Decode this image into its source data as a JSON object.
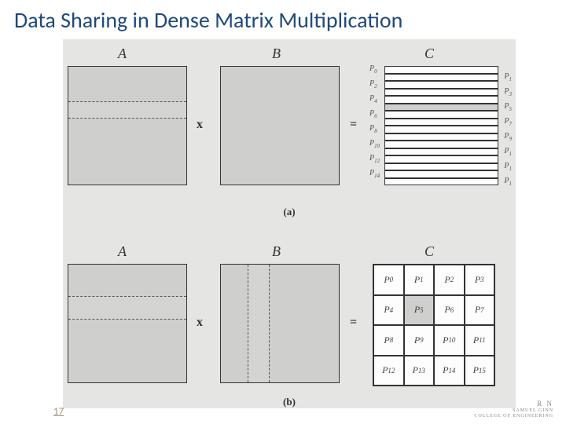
{
  "title": "Data Sharing in Dense Matrix Multiplication",
  "page_number": "17",
  "footer": {
    "line1": "R N",
    "line2": "SAMUEL GINN\nCOLLEGE OF ENGINEERING"
  },
  "labels": {
    "A": "A",
    "B": "B",
    "C": "C",
    "times": "x",
    "equals": "=",
    "sub_a": "(a)",
    "sub_b": "(b)"
  },
  "figure": {
    "background_color": "#e5e5e3",
    "matrix_fill": "#cfcfcd",
    "border_color": "#333333",
    "row_a": {
      "c_strip_count": 16,
      "shaded_index": 5,
      "left_labels": [
        "P0",
        "P2",
        "P4",
        "P6",
        "P8",
        "P10",
        "P12",
        "P14"
      ],
      "right_labels": [
        "P1",
        "P3",
        "P5",
        "P7",
        "P9",
        "P1",
        "P1",
        "P1"
      ]
    },
    "row_b": {
      "grid": 4,
      "shaded_cell": [
        1,
        1
      ],
      "cells": [
        [
          "P0",
          "P1",
          "P2",
          "P3"
        ],
        [
          "P4",
          "P5",
          "P6",
          "P7"
        ],
        [
          "P8",
          "P9",
          "P10",
          "P11"
        ],
        [
          "P12",
          "P13",
          "P14",
          "P15"
        ]
      ]
    }
  }
}
